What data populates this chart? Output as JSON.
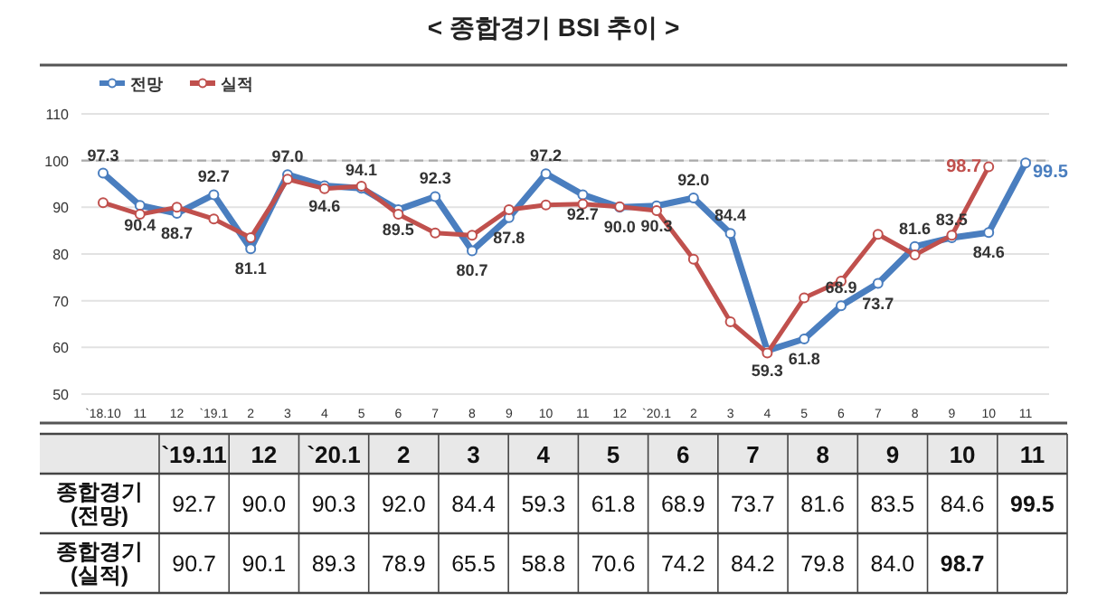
{
  "chart_data": {
    "type": "line",
    "title": "< 종합경기 BSI 추이 >",
    "categories": [
      "`18.10",
      "11",
      "12",
      "`19.1",
      "2",
      "3",
      "4",
      "5",
      "6",
      "7",
      "8",
      "9",
      "10",
      "11",
      "12",
      "`20.1",
      "2",
      "3",
      "4",
      "5",
      "6",
      "7",
      "8",
      "9",
      "10",
      "11"
    ],
    "series": [
      {
        "name": "전망",
        "color": "#4a7ebf",
        "values": [
          97.3,
          90.4,
          88.7,
          92.7,
          81.1,
          97.0,
          94.6,
          94.1,
          89.5,
          92.3,
          80.7,
          87.8,
          97.2,
          92.7,
          90.0,
          90.3,
          92.0,
          84.4,
          59.3,
          61.8,
          68.9,
          73.7,
          81.6,
          83.5,
          84.6,
          99.5
        ],
        "value_labels": [
          "97.3",
          "90.4",
          "88.7",
          "92.7",
          "81.1",
          "97.0",
          "94.6",
          "94.1",
          "89.5",
          "92.3",
          "80.7",
          "87.8",
          "97.2",
          "92.7",
          "90.0",
          "90.3",
          "92.0",
          "84.4",
          "59.3",
          "61.8",
          "68.9",
          "73.7",
          "81.6",
          "83.5",
          "84.6",
          "99.5"
        ]
      },
      {
        "name": "실적",
        "color": "#c0504d",
        "values": [
          91.0,
          88.5,
          90.0,
          87.5,
          83.5,
          96.0,
          94.0,
          94.5,
          88.5,
          84.5,
          84.0,
          89.5,
          90.5,
          90.7,
          90.1,
          89.3,
          78.9,
          65.5,
          58.8,
          70.6,
          74.2,
          84.2,
          79.8,
          84.0,
          98.7,
          null
        ],
        "value_labels": [
          null,
          null,
          null,
          null,
          null,
          null,
          null,
          null,
          null,
          null,
          null,
          null,
          null,
          null,
          null,
          null,
          null,
          null,
          null,
          null,
          null,
          null,
          null,
          null,
          "98.7",
          null
        ]
      }
    ],
    "ylim": [
      50,
      110
    ],
    "yticks": [
      50,
      60,
      70,
      80,
      90,
      100,
      110
    ],
    "grid": "y",
    "legend": "top left",
    "marker": "circle",
    "line_style": "solid",
    "ref_lines": [
      {
        "axis": "y",
        "value": 100,
        "line_style": "dashed",
        "color": "#aaaaaa"
      }
    ],
    "data_labels": true,
    "annotations": [
      "`19.11",
      "12",
      "`20.1",
      "2",
      "3",
      "4",
      "5",
      "6",
      "7",
      "8",
      "9",
      "10",
      "11",
      "종합경기\n(전망)",
      "92.7",
      "90.0",
      "90.3",
      "92.0",
      "84.4",
      "59.3",
      "61.8",
      "68.9",
      "73.7",
      "81.6",
      "83.5",
      "84.6",
      "99.5",
      "종합경기\n(실적)",
      "90.7",
      "90.1",
      "89.3",
      "78.9",
      "65.5",
      "58.8",
      "70.6",
      "74.2",
      "84.2",
      "79.8",
      "84.0",
      "98.7"
    ]
  }
}
